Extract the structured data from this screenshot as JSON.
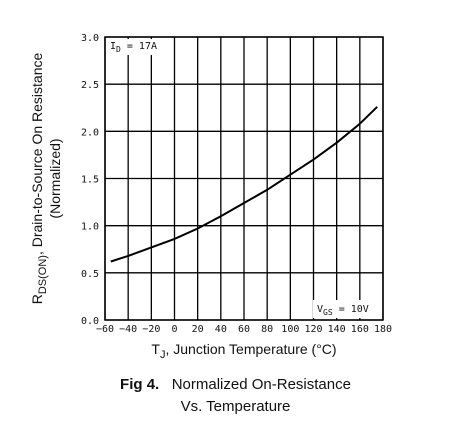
{
  "chart_data": {
    "type": "line",
    "title": "",
    "xlabel_main": "T",
    "xlabel_sub": "J",
    "xlabel_rest": ", Junction Temperature (°C)",
    "ylabel_line1_main": "R",
    "ylabel_line1_sub": "DS(ON)",
    "ylabel_line1_rest": ", Drain-to-Source On Resistance",
    "ylabel_line2": "(Normalized)",
    "xlim": [
      -60,
      180
    ],
    "ylim": [
      0.0,
      3.0
    ],
    "x_ticks": [
      -60,
      -40,
      -20,
      0,
      20,
      40,
      60,
      80,
      100,
      120,
      140,
      160,
      180
    ],
    "x_tick_labels": [
      "−60",
      "−40",
      "−20",
      "0",
      "20",
      "40",
      "60",
      "80",
      "100",
      "120",
      "140",
      "160",
      "180"
    ],
    "y_ticks": [
      0.0,
      0.5,
      1.0,
      1.5,
      2.0,
      2.5,
      3.0
    ],
    "y_tick_labels": [
      "0.0",
      "0.5",
      "1.0",
      "1.5",
      "2.0",
      "2.5",
      "3.0"
    ],
    "grid": true,
    "annotations": {
      "id_main": "I",
      "id_sub": "D",
      "id_rest": " = 17A",
      "vgs_main": "V",
      "vgs_sub": "GS",
      "vgs_rest": " = 10V"
    },
    "series": [
      {
        "x": [
          -55,
          -40,
          -20,
          0,
          20,
          40,
          60,
          80,
          100,
          120,
          140,
          160,
          175
        ],
        "y": [
          0.62,
          0.68,
          0.77,
          0.86,
          0.97,
          1.1,
          1.24,
          1.38,
          1.54,
          1.7,
          1.88,
          2.08,
          2.26
        ]
      }
    ]
  },
  "caption": {
    "fig_label": "Fig 4.",
    "line1": "Normalized On-Resistance",
    "line2": "Vs. Temperature"
  }
}
